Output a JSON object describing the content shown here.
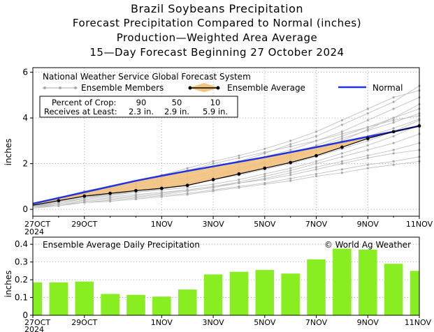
{
  "titles": {
    "line1": "Brazil Soybeans Precipitation",
    "line2": "Forecast Precipitation Compared to Normal (inches)",
    "line3": "Production—Weighted Area Average",
    "line4": "15—Day Forecast Beginning 27 October 2024"
  },
  "top_chart": {
    "system_label": "National Weather Service Global Forecast System",
    "legend": {
      "members": "Ensemble Members",
      "average": "Ensemble Average",
      "normal": "Normal"
    },
    "crop_table": {
      "header_label": "Percent of Crop:",
      "header_values": [
        "90",
        "50",
        "10"
      ],
      "row_label": "Receives at Least:",
      "row_values": [
        "2.3 in.",
        "2.9 in.",
        "5.9 in."
      ]
    },
    "ylabel": "inches",
    "colors": {
      "normal": "#2233dd",
      "average_fill": "#f3c27e",
      "members": "#bbbbbb",
      "average": "#000000"
    }
  },
  "bottom_chart": {
    "title": "Ensemble Average Daily Precipitation",
    "copyright": "© World Ag Weather",
    "ylabel": "inches",
    "colors": {
      "bar": "#88ee22"
    }
  },
  "chart_data": [
    {
      "type": "line",
      "title": "Forecast Precipitation Compared to Normal (inches)",
      "ylabel": "inches",
      "x": [
        0,
        1,
        2,
        3,
        4,
        5,
        6,
        7,
        8,
        9,
        10,
        11,
        12,
        13,
        14,
        15
      ],
      "x_tick_positions": [
        0,
        2,
        5,
        7,
        9,
        11,
        13,
        15
      ],
      "x_tick_labels": [
        "27OCT\n2024",
        "29OCT",
        "1NOV",
        "3NOV",
        "5NOV",
        "7NOV",
        "9NOV",
        "11NOV"
      ],
      "yticks": [
        0,
        2,
        4,
        6
      ],
      "xlim": [
        0,
        15
      ],
      "ylim": [
        -0.3,
        6.2
      ],
      "grid": true,
      "series": [
        {
          "name": "Ensemble Average",
          "values": [
            0.18,
            0.38,
            0.58,
            0.7,
            0.82,
            0.92,
            1.05,
            1.3,
            1.55,
            1.8,
            2.05,
            2.35,
            2.72,
            3.1,
            3.4,
            3.65
          ]
        },
        {
          "name": "Normal",
          "values": [
            0.25,
            0.5,
            0.75,
            1.0,
            1.25,
            1.47,
            1.68,
            1.88,
            2.08,
            2.28,
            2.5,
            2.72,
            2.95,
            3.18,
            3.4,
            3.65
          ]
        }
      ],
      "ensemble_members": [
        [
          0.1,
          0.4,
          0.7,
          0.9,
          1.1,
          1.3,
          1.55,
          1.85,
          2.1,
          2.45,
          2.85,
          3.2,
          3.7,
          4.2,
          4.7,
          5.4
        ],
        [
          0.2,
          0.5,
          0.8,
          1.0,
          1.2,
          1.5,
          1.8,
          2.1,
          2.35,
          2.65,
          3.0,
          3.4,
          3.9,
          4.4,
          4.9,
          5.2
        ],
        [
          0.15,
          0.45,
          0.7,
          0.85,
          1.0,
          1.2,
          1.4,
          1.65,
          1.95,
          2.3,
          2.6,
          3.0,
          3.4,
          3.9,
          4.4,
          4.9
        ],
        [
          0.1,
          0.3,
          0.5,
          0.6,
          0.75,
          0.9,
          1.1,
          1.35,
          1.6,
          1.9,
          2.2,
          2.6,
          3.0,
          3.5,
          4.0,
          4.6
        ],
        [
          0.2,
          0.4,
          0.6,
          0.75,
          0.85,
          1.0,
          1.15,
          1.4,
          1.7,
          2.0,
          2.35,
          2.7,
          3.1,
          3.45,
          3.8,
          4.2
        ],
        [
          0.1,
          0.35,
          0.55,
          0.65,
          0.8,
          0.95,
          1.1,
          1.3,
          1.5,
          1.75,
          2.0,
          2.3,
          2.65,
          3.0,
          3.4,
          3.9
        ],
        [
          0.15,
          0.35,
          0.55,
          0.65,
          0.75,
          0.85,
          0.95,
          1.1,
          1.3,
          1.55,
          1.8,
          2.1,
          2.45,
          2.8,
          3.2,
          3.7
        ],
        [
          0.1,
          0.25,
          0.4,
          0.5,
          0.6,
          0.7,
          0.85,
          1.0,
          1.2,
          1.45,
          1.7,
          2.0,
          2.3,
          2.6,
          2.9,
          3.3
        ],
        [
          0.05,
          0.2,
          0.35,
          0.45,
          0.55,
          0.65,
          0.8,
          0.95,
          1.15,
          1.35,
          1.6,
          1.85,
          2.1,
          2.35,
          2.6,
          2.9
        ],
        [
          0.1,
          0.3,
          0.45,
          0.55,
          0.65,
          0.75,
          0.85,
          1.0,
          1.15,
          1.3,
          1.5,
          1.75,
          2.0,
          2.25,
          2.45,
          2.6
        ],
        [
          0.05,
          0.15,
          0.3,
          0.4,
          0.5,
          0.6,
          0.7,
          0.85,
          1.0,
          1.15,
          1.35,
          1.55,
          1.75,
          1.95,
          2.1,
          2.3
        ],
        [
          0.1,
          0.2,
          0.3,
          0.35,
          0.45,
          0.55,
          0.65,
          0.8,
          0.95,
          1.1,
          1.25,
          1.45,
          1.6,
          1.8,
          1.95,
          2.1
        ],
        [
          0.2,
          0.5,
          0.75,
          0.95,
          1.15,
          1.4,
          1.7,
          2.0,
          2.25,
          2.5,
          2.75,
          3.0,
          3.3,
          3.6,
          3.9,
          4.1
        ],
        [
          0.15,
          0.4,
          0.65,
          0.8,
          0.95,
          1.1,
          1.3,
          1.55,
          1.8,
          2.1,
          2.4,
          2.8,
          3.2,
          3.6,
          4.0,
          4.4
        ],
        [
          0.1,
          0.3,
          0.5,
          0.65,
          0.8,
          0.95,
          1.15,
          1.45,
          1.75,
          2.05,
          2.3,
          2.55,
          2.85,
          3.2,
          3.55,
          3.95
        ]
      ]
    },
    {
      "type": "bar",
      "title": "Ensemble Average Daily Precipitation",
      "ylabel": "inches",
      "x": [
        0,
        1,
        2,
        3,
        4,
        5,
        6,
        7,
        8,
        9,
        10,
        11,
        12,
        13,
        14,
        15
      ],
      "x_tick_positions": [
        0,
        2,
        5,
        7,
        9,
        11,
        13,
        15
      ],
      "x_tick_labels": [
        "27OCT\n2024",
        "29OCT",
        "1NOV",
        "3NOV",
        "5NOV",
        "7NOV",
        "9NOV",
        "11NOV"
      ],
      "values": [
        0.185,
        0.185,
        0.19,
        0.12,
        0.115,
        0.105,
        0.145,
        0.23,
        0.245,
        0.255,
        0.235,
        0.315,
        0.375,
        0.37,
        0.29,
        0.25
      ],
      "yticks": [
        0,
        0.1,
        0.2,
        0.3,
        0.4
      ],
      "xlim": [
        0,
        15
      ],
      "ylim": [
        0,
        0.44
      ],
      "grid": true
    }
  ]
}
